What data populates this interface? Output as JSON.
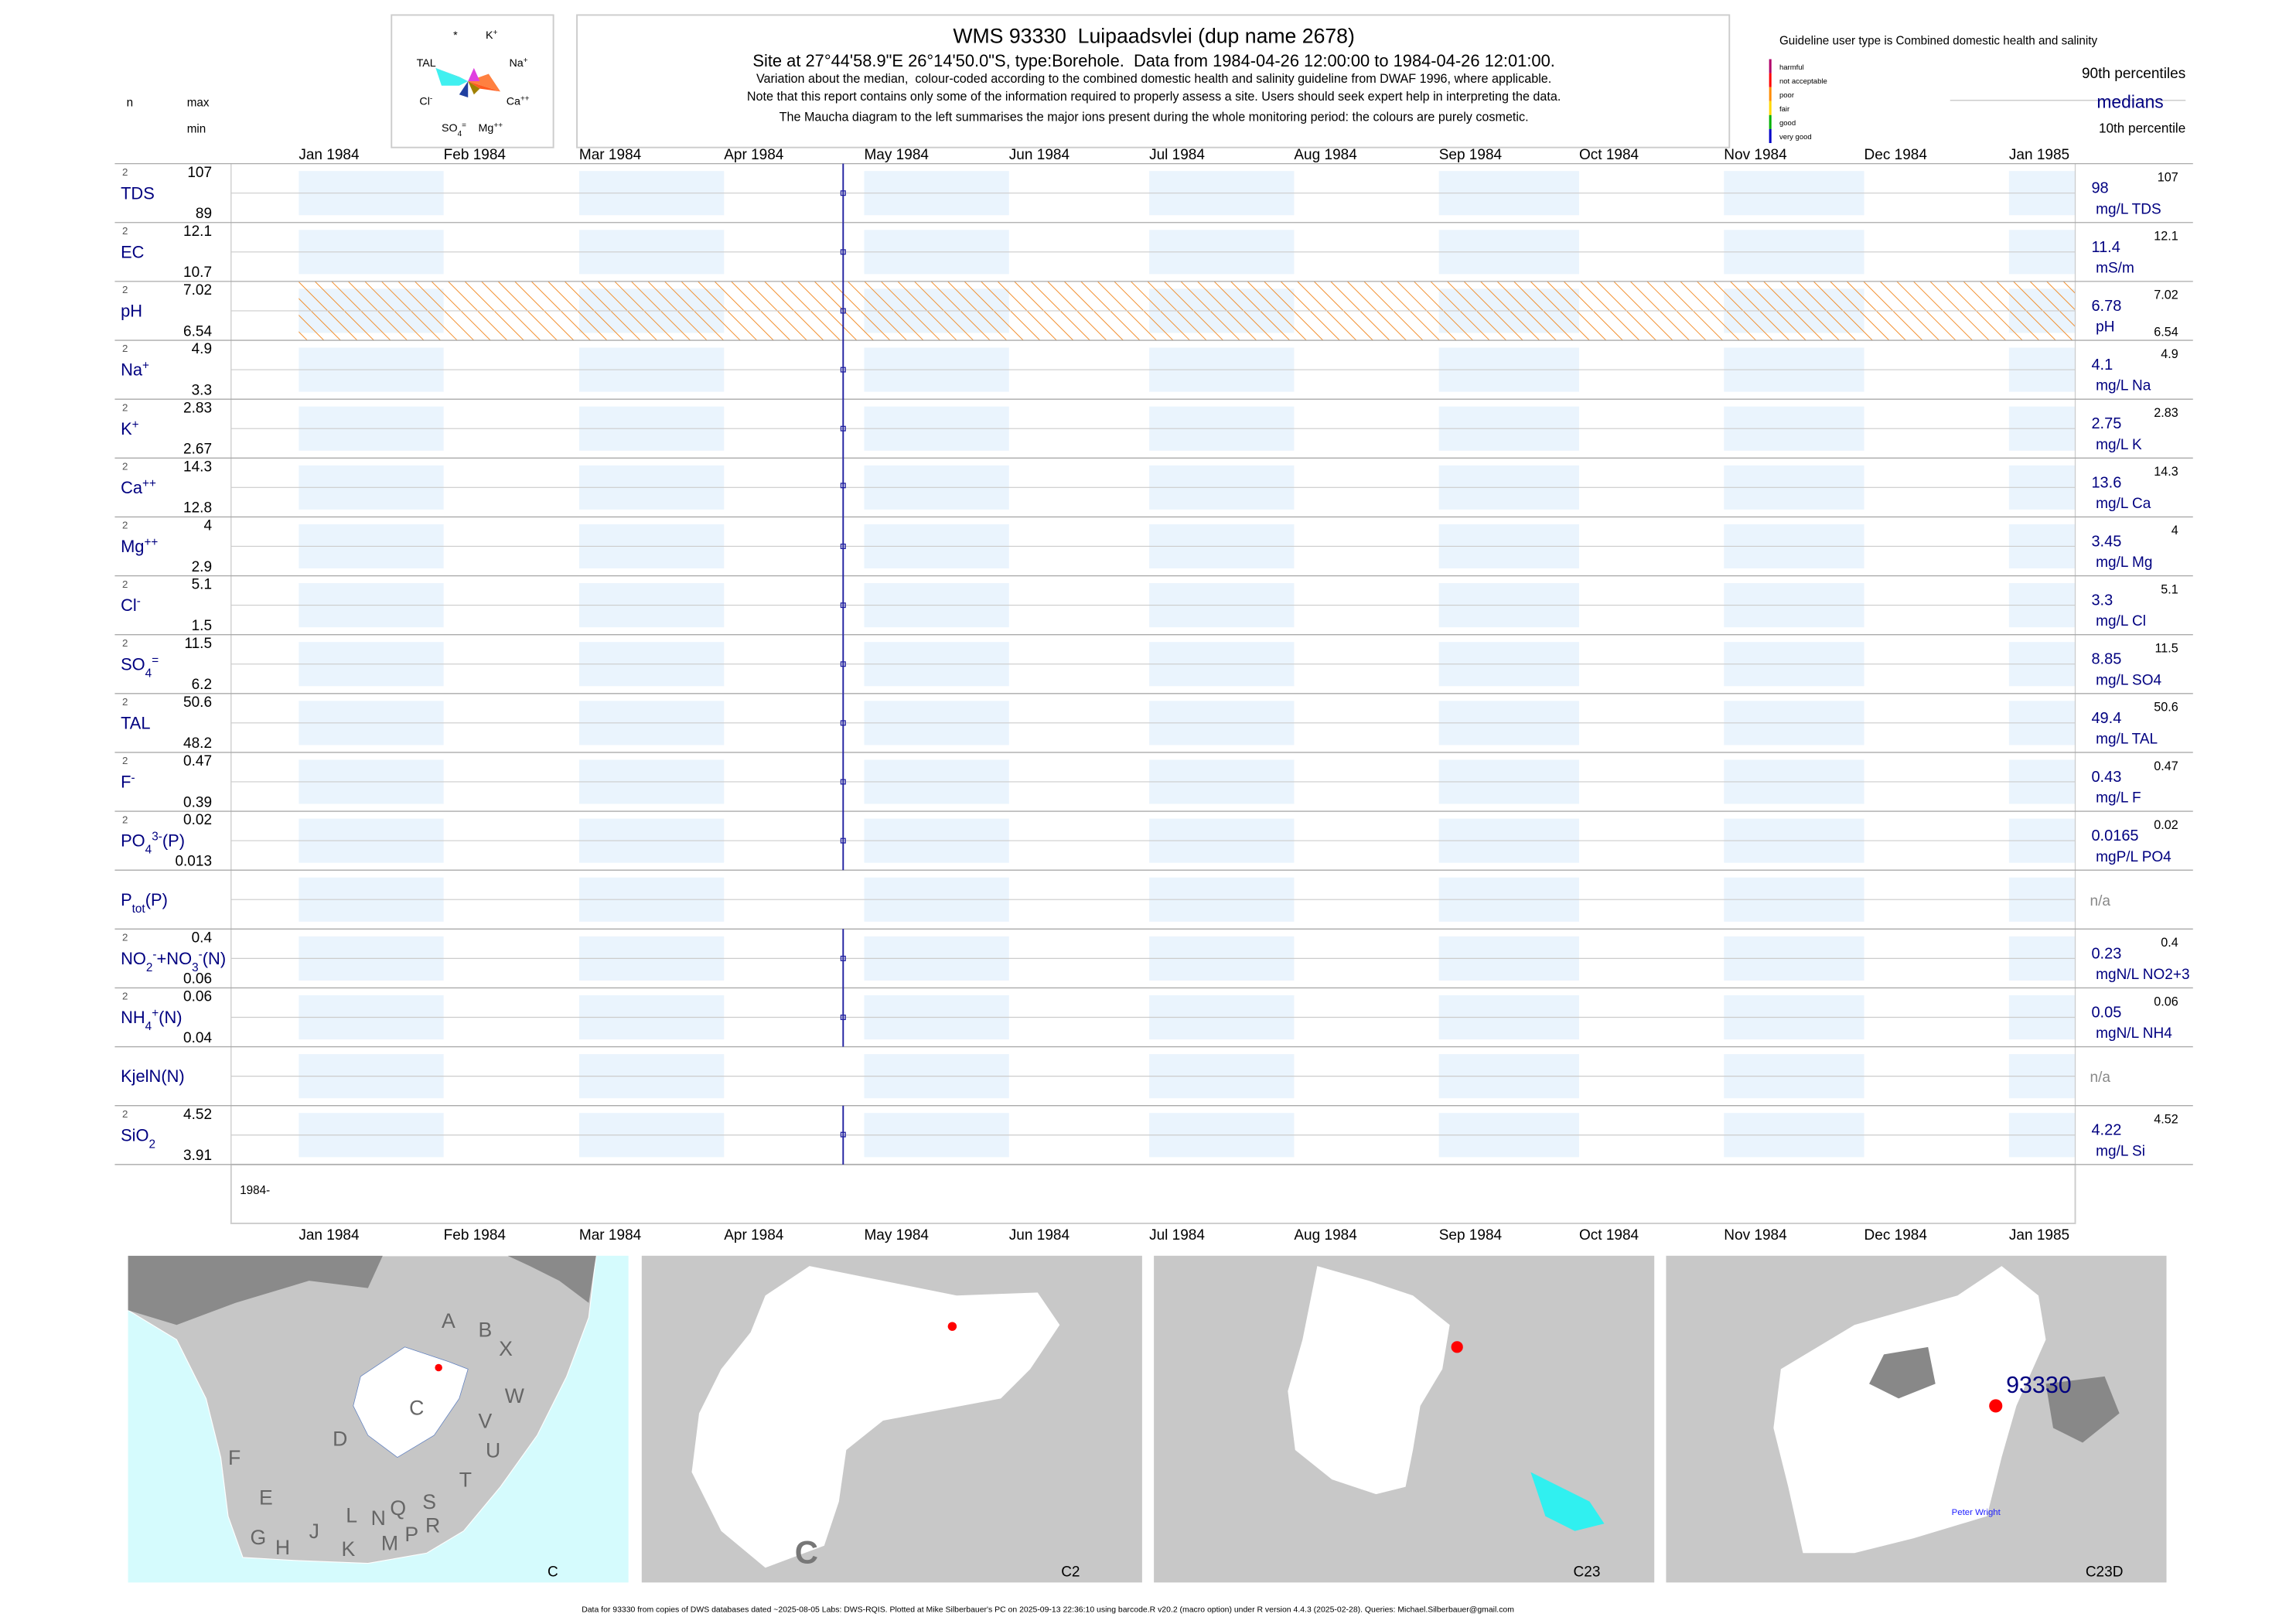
{
  "header": {
    "title": "WMS 93330  Luipaadsvlei (dup name 2678)",
    "site": "Site at 27°44'58.9\"E 26°14'50.0\"S, type:Borehole.  Data from 1984-04-26 12:00:00 to 1984-04-26 12:01:00.",
    "notes": [
      "Variation about the median,  colour-coded according to the combined domestic health and salinity guideline from DWAF 1996, where applicable.",
      "Note that this report contains only some of the information required to properly assess a site. Users should seek expert help in interpreting the data.",
      "The Maucha diagram to the left summarises the major ions present during the whole monitoring period: the colours are purely cosmetic."
    ]
  },
  "maucha": {
    "labels": [
      [
        {
          "text": "*"
        }
      ],
      [
        {
          "text": "K"
        },
        {
          "sup": "+"
        }
      ],
      [
        {
          "text": "TAL"
        }
      ],
      [
        {
          "text": "Na"
        },
        {
          "sup": "+"
        }
      ],
      [
        {
          "text": "Cl"
        },
        {
          "sup": "-"
        }
      ],
      [
        {
          "text": "Ca"
        },
        {
          "sup": "++"
        }
      ],
      [
        {
          "text": "SO"
        },
        {
          "sub": "4"
        },
        {
          "sup": "="
        }
      ],
      [
        {
          "text": "Mg"
        },
        {
          "sup": "++"
        }
      ]
    ]
  },
  "column_headers": {
    "n": "n",
    "max": "max",
    "min": "min"
  },
  "legend": {
    "guideline": "Guideline user type is Combined domestic health and salinity",
    "classes": [
      "harmful",
      "not acceptable",
      "poor",
      "fair",
      "good",
      "very good"
    ],
    "class_colors": [
      "#b0006a",
      "#ff0000",
      "#ff8c00",
      "#ffd700",
      "#00b000",
      "#0000c8"
    ],
    "p90": "90th percentiles",
    "medians": "medians",
    "p10": "10th percentile"
  },
  "months": [
    "Jan 1984",
    "Feb 1984",
    "Mar 1984",
    "Apr 1984",
    "May 1984",
    "Jun 1984",
    "Jul 1984",
    "Aug 1984",
    "Sep 1984",
    "Oct 1984",
    "Nov 1984",
    "Dec 1984",
    "Jan 1985"
  ],
  "year_label": "1984-",
  "rows": [
    {
      "label": [
        {
          "text": "TDS"
        }
      ],
      "n": 2,
      "max": 107,
      "min": 89,
      "median": 98,
      "unit": "mg/L TDS"
    },
    {
      "label": [
        {
          "text": "EC"
        }
      ],
      "n": 2,
      "max": 12.1,
      "min": 10.7,
      "median": 11.4,
      "unit": "mS/m"
    },
    {
      "label": [
        {
          "text": "pH"
        }
      ],
      "n": 2,
      "max": 7.02,
      "min": 6.54,
      "median": 6.78,
      "unit": "pH",
      "hatched": true
    },
    {
      "label": [
        {
          "text": "Na"
        },
        {
          "sup": "+"
        }
      ],
      "n": 2,
      "max": 4.9,
      "min": 3.3,
      "median": 4.1,
      "unit": "mg/L Na"
    },
    {
      "label": [
        {
          "text": "K"
        },
        {
          "sup": "+"
        }
      ],
      "n": 2,
      "max": 2.83,
      "min": 2.67,
      "median": 2.75,
      "unit": "mg/L K"
    },
    {
      "label": [
        {
          "text": "Ca"
        },
        {
          "sup": "++"
        }
      ],
      "n": 2,
      "max": 14.3,
      "min": 12.8,
      "median": 13.6,
      "unit": "mg/L Ca"
    },
    {
      "label": [
        {
          "text": "Mg"
        },
        {
          "sup": "++"
        }
      ],
      "n": 2,
      "max": 4,
      "min": 2.9,
      "median": 3.45,
      "unit": "mg/L Mg"
    },
    {
      "label": [
        {
          "text": "Cl"
        },
        {
          "sup": "-"
        }
      ],
      "n": 2,
      "max": 5.1,
      "min": 1.5,
      "median": 3.3,
      "unit": "mg/L Cl"
    },
    {
      "label": [
        {
          "text": "SO"
        },
        {
          "sub": "4"
        },
        {
          "sup": "="
        }
      ],
      "n": 2,
      "max": 11.5,
      "min": 6.2,
      "median": 8.85,
      "unit": "mg/L SO4"
    },
    {
      "label": [
        {
          "text": "TAL"
        }
      ],
      "n": 2,
      "max": 50.6,
      "min": 48.2,
      "median": 49.4,
      "unit": "mg/L TAL"
    },
    {
      "label": [
        {
          "text": "F"
        },
        {
          "sup": "-"
        }
      ],
      "n": 2,
      "max": 0.47,
      "min": 0.39,
      "median": 0.43,
      "unit": "mg/L F"
    },
    {
      "label": [
        {
          "text": "PO"
        },
        {
          "sub": "4"
        },
        {
          "sup": "3-"
        },
        {
          "text": "(P)"
        }
      ],
      "n": 2,
      "max": 0.02,
      "min": 0.013,
      "median": 0.0165,
      "unit": "mgP/L PO4"
    },
    {
      "label": [
        {
          "text": "P"
        },
        {
          "sub": "tot"
        },
        {
          "text": "(P)"
        }
      ],
      "status": "n/a"
    },
    {
      "label": [
        {
          "text": "NO"
        },
        {
          "sub": "2"
        },
        {
          "sup": "-"
        },
        {
          "text": "+NO"
        },
        {
          "sub": "3"
        },
        {
          "sup": "-"
        },
        {
          "text": "(N)"
        }
      ],
      "n": 2,
      "max": 0.4,
      "min": 0.06,
      "median": 0.23,
      "unit": "mgN/L NO2+3"
    },
    {
      "label": [
        {
          "text": "NH"
        },
        {
          "sub": "4"
        },
        {
          "sup": "+"
        },
        {
          "text": "(N)"
        }
      ],
      "n": 2,
      "max": 0.06,
      "min": 0.04,
      "median": 0.05,
      "unit": "mgN/L NH4"
    },
    {
      "label": [
        {
          "text": "KjelN(N)"
        }
      ],
      "status": "n/a"
    },
    {
      "label": [
        {
          "text": "SiO"
        },
        {
          "sub": "2"
        }
      ],
      "n": 2,
      "max": 4.52,
      "min": 3.91,
      "median": 4.22,
      "unit": "mg/L Si"
    }
  ],
  "maps": [
    {
      "caption": "C",
      "big_label": "C",
      "letters": [
        "A",
        "B",
        "X",
        "W",
        "C",
        "V",
        "U",
        "D",
        "F",
        "T",
        "E",
        "S",
        "L",
        "N",
        "Q",
        "R",
        "J",
        "G",
        "H",
        "K",
        "M",
        "P"
      ]
    },
    {
      "caption": "C2",
      "big_label": "C"
    },
    {
      "caption": "C23"
    },
    {
      "caption": "C23D",
      "station": "93330",
      "place": "Peter Wright"
    }
  ],
  "footer": "Data for 93330 from copies of DWS databases dated ~2025-08-05 Labs: DWS-RQIS. Plotted at Mike Silberbauer's PC on 2025-09-13 22:36:10 using barcode.R v20.2 (macro option) under R version 4.4.3 (2025-02-28). Queries: Michael.Silberbauer@gmail.com"
}
